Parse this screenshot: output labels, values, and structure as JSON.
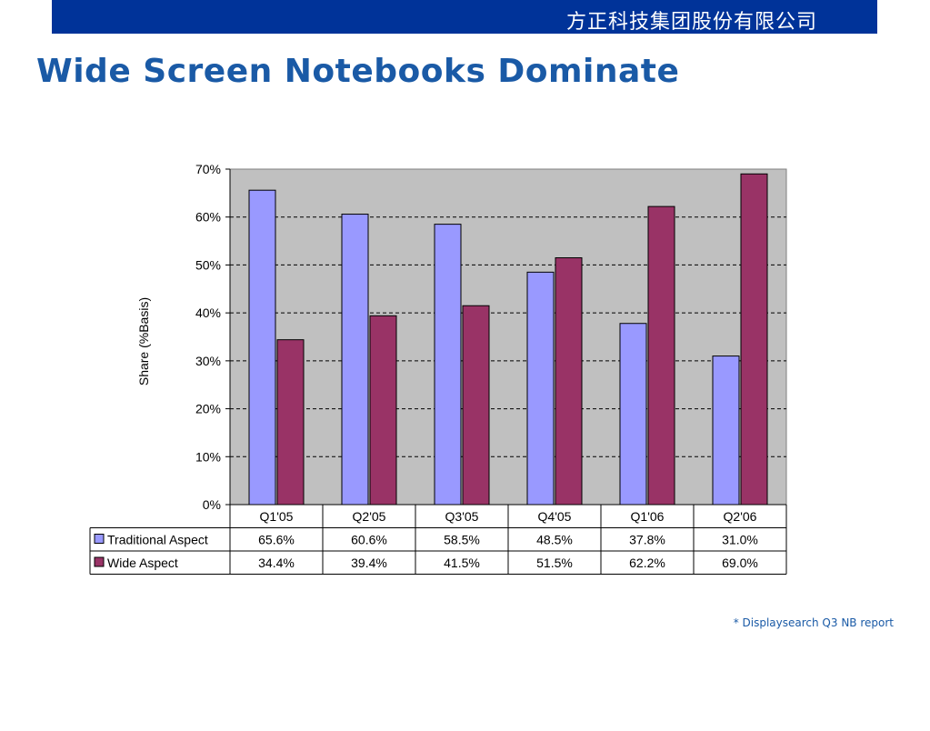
{
  "header": {
    "company": "方正科技集团股份有限公司",
    "bar_color": "#003399"
  },
  "slide": {
    "title": "Wide Screen Notebooks Dominate",
    "title_color": "#1a5aa6",
    "source_note": "* Displaysearch Q3 NB report"
  },
  "chart_data": {
    "type": "bar",
    "ylabel": "Share (%Basis)",
    "ylim": [
      0,
      70
    ],
    "yticks": [
      0,
      10,
      20,
      30,
      40,
      50,
      60,
      70
    ],
    "ytick_labels": [
      "0%",
      "10%",
      "20%",
      "30%",
      "40%",
      "50%",
      "60%",
      "70%"
    ],
    "categories": [
      "Q1'05",
      "Q2'05",
      "Q3'05",
      "Q4'05",
      "Q1'06",
      "Q2'06"
    ],
    "series": [
      {
        "name": "Traditional Aspect",
        "color": "#9999ff",
        "values": [
          65.6,
          60.6,
          58.5,
          48.5,
          37.8,
          31.0
        ],
        "labels": [
          "65.6%",
          "60.6%",
          "58.5%",
          "48.5%",
          "37.8%",
          "31.0%"
        ]
      },
      {
        "name": "Wide Aspect",
        "color": "#993366",
        "values": [
          34.4,
          39.4,
          41.5,
          51.5,
          62.2,
          69.0
        ],
        "labels": [
          "34.4%",
          "39.4%",
          "41.5%",
          "51.5%",
          "62.2%",
          "69.0%"
        ]
      }
    ],
    "plot_background": "#c0c0c0",
    "grid": "dashed horizontal",
    "legend": "data table below chart"
  }
}
